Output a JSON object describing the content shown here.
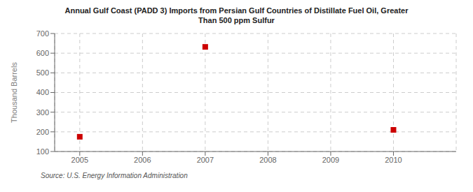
{
  "chart_data": {
    "type": "scatter",
    "title": "Annual Gulf Coast (PADD 3) Imports from Persian Gulf Countries of Distillate Fuel Oil, Greater\nThan 500 ppm Sulfur",
    "y_label": "Thousand Barrels",
    "annotations": [
      "Source: U.S. Energy Information Administration"
    ],
    "x": [
      2005,
      2007,
      2010
    ],
    "values": [
      175,
      632,
      210
    ],
    "color": "#cc0000",
    "marker": "square",
    "xlim": [
      2004.6,
      2011.0
    ],
    "ylim": [
      100,
      700
    ],
    "xticks": [
      2005,
      2006,
      2007,
      2008,
      2009,
      2010
    ],
    "yticks": [
      100,
      200,
      300,
      400,
      500,
      600,
      700
    ],
    "grid": true
  }
}
